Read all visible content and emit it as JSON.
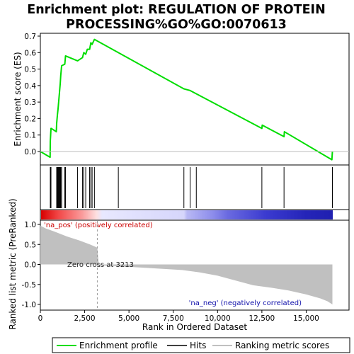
{
  "chart_data": {
    "type": "line",
    "title_line1": "Enrichment plot: REGULATION OF PROTEIN",
    "title_line2": "PROCESSING%GO%GO:0070613",
    "ylabel_top": "Enrichment score (ES)",
    "ylabel_bottom": "Ranked list metric (PreRanked)",
    "xlabel": "Rank in Ordered Dataset",
    "x_ticks": [
      0,
      2500,
      5000,
      7500,
      10000,
      12500,
      15000
    ],
    "x_tick_labels": [
      "0",
      "2,500",
      "5,000",
      "7,500",
      "10,000",
      "12,500",
      "15,000"
    ],
    "xlim": [
      0,
      16500
    ],
    "es_ylim": [
      -0.08,
      0.72
    ],
    "es_ticks": [
      0.0,
      0.1,
      0.2,
      0.3,
      0.4,
      0.5,
      0.6,
      0.7
    ],
    "es_tick_labels": [
      "0.0",
      "0.1",
      "0.2",
      "0.3",
      "0.4",
      "0.5",
      "0.6",
      "0.7"
    ],
    "metric_ylim": [
      -1.1,
      1.1
    ],
    "metric_ticks": [
      1.0,
      0.5,
      0.0,
      -0.5,
      -1.0
    ],
    "metric_tick_labels": [
      "1.0",
      "0.5",
      "0.0",
      "-0.5",
      "-1.0"
    ],
    "es_curve": {
      "x": [
        0,
        550,
        560,
        580,
        600,
        620,
        900,
        920,
        960,
        1000,
        1040,
        1080,
        1120,
        1150,
        1200,
        1380,
        1420,
        2100,
        2380,
        2450,
        2560,
        2650,
        2780,
        2850,
        2920,
        3050,
        8100,
        8450,
        8800,
        12500,
        12520,
        13750,
        13770,
        16450,
        16480
      ],
      "y": [
        0.0,
        -0.035,
        0.06,
        0.1,
        0.14,
        0.14,
        0.12,
        0.17,
        0.22,
        0.26,
        0.31,
        0.36,
        0.41,
        0.46,
        0.52,
        0.53,
        0.58,
        0.55,
        0.57,
        0.6,
        0.59,
        0.62,
        0.62,
        0.66,
        0.65,
        0.68,
        0.38,
        0.37,
        0.35,
        0.14,
        0.16,
        0.09,
        0.12,
        -0.05,
        0.0
      ]
    },
    "hits": [
      560,
      600,
      920,
      960,
      1000,
      1040,
      1080,
      1120,
      1150,
      1200,
      1380,
      1420,
      2100,
      2380,
      2450,
      2560,
      2780,
      2850,
      2920,
      3050,
      4400,
      8100,
      8450,
      8800,
      12500,
      13750,
      16480
    ],
    "metric_curve": {
      "x": [
        0,
        300,
        800,
        1500,
        2200,
        2800,
        3213,
        3300,
        5000,
        6500,
        8000,
        9000,
        10000,
        11000,
        12000,
        13000,
        14000,
        15000,
        15800,
        16200,
        16480
      ],
      "y": [
        0.97,
        0.9,
        0.82,
        0.7,
        0.6,
        0.5,
        0.42,
        -0.02,
        -0.06,
        -0.1,
        -0.14,
        -0.2,
        -0.28,
        -0.4,
        -0.52,
        -0.58,
        -0.65,
        -0.75,
        -0.85,
        -0.92,
        -1.0
      ]
    },
    "zero_cross_rank": 3213,
    "zero_cross_label": "Zero cross at 3213",
    "pos_label": "'na_pos' (positively correlated)",
    "neg_label": "'na_neg' (negatively correlated)",
    "colors": {
      "es_line": "#00dd00",
      "hit_line": "#000000",
      "metric_fill": "#c0c0c0",
      "pos_text": "#cc0000",
      "neg_text": "#1010aa"
    },
    "legend": [
      "Enrichment profile",
      "Hits",
      "Ranking metric scores"
    ]
  }
}
